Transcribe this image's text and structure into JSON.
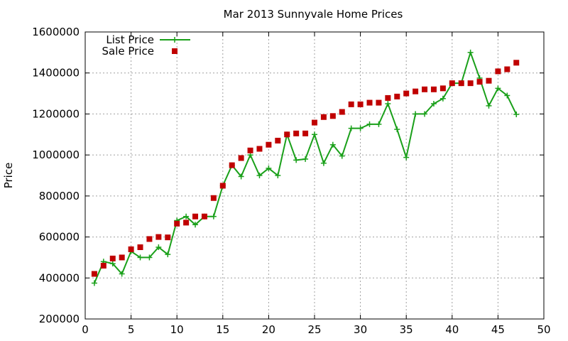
{
  "chart_data": {
    "type": "scatter",
    "title": "Mar 2013 Sunnyvale Home Prices",
    "xlabel": "",
    "ylabel": "Price",
    "xlim": [
      0,
      50
    ],
    "ylim": [
      200000,
      1600000
    ],
    "x_ticks": [
      0,
      5,
      10,
      15,
      20,
      25,
      30,
      35,
      40,
      45,
      50
    ],
    "y_ticks": [
      200000,
      400000,
      600000,
      800000,
      1000000,
      1200000,
      1400000,
      1600000
    ],
    "grid": true,
    "legend_position": "top-left",
    "series": [
      {
        "name": "List Price",
        "style": "line-with-plus",
        "color": "#1aa01a",
        "x": [
          1,
          2,
          3,
          4,
          5,
          6,
          7,
          8,
          9,
          10,
          11,
          12,
          13,
          14,
          15,
          16,
          17,
          18,
          19,
          20,
          21,
          22,
          23,
          24,
          25,
          26,
          27,
          28,
          29,
          30,
          31,
          32,
          33,
          34,
          35,
          36,
          37,
          38,
          39,
          40,
          41,
          42,
          43,
          44,
          45,
          46,
          47
        ],
        "y": [
          375000,
          480000,
          470000,
          420000,
          530000,
          500000,
          500000,
          550000,
          515000,
          680000,
          700000,
          660000,
          700000,
          700000,
          850000,
          950000,
          895000,
          1000000,
          900000,
          935000,
          900000,
          1100000,
          975000,
          980000,
          1100000,
          960000,
          1050000,
          995000,
          1130000,
          1130000,
          1150000,
          1150000,
          1250000,
          1125000,
          988000,
          1200000,
          1200000,
          1250000,
          1275000,
          1350000,
          1350000,
          1500000,
          1375000,
          1240000,
          1325000,
          1290000,
          1198000
        ]
      },
      {
        "name": "Sale Price",
        "style": "square-markers",
        "color": "#c00000",
        "x": [
          1,
          2,
          3,
          4,
          5,
          6,
          7,
          8,
          9,
          10,
          11,
          12,
          13,
          14,
          15,
          16,
          17,
          18,
          19,
          20,
          21,
          22,
          23,
          24,
          25,
          26,
          27,
          28,
          29,
          30,
          31,
          32,
          33,
          34,
          35,
          36,
          37,
          38,
          39,
          40,
          41,
          42,
          43,
          44,
          45,
          46,
          47
        ],
        "y": [
          420000,
          460000,
          495000,
          500000,
          540000,
          550000,
          590000,
          600000,
          598000,
          665000,
          670000,
          700000,
          700000,
          790000,
          850000,
          950000,
          985000,
          1022000,
          1030000,
          1050000,
          1070000,
          1100000,
          1105000,
          1105000,
          1158000,
          1185000,
          1190000,
          1210000,
          1247000,
          1247000,
          1255000,
          1255000,
          1278000,
          1285000,
          1300000,
          1310000,
          1320000,
          1320000,
          1325000,
          1350000,
          1350000,
          1350000,
          1357000,
          1362000,
          1408000,
          1418000,
          1450000
        ]
      }
    ]
  }
}
